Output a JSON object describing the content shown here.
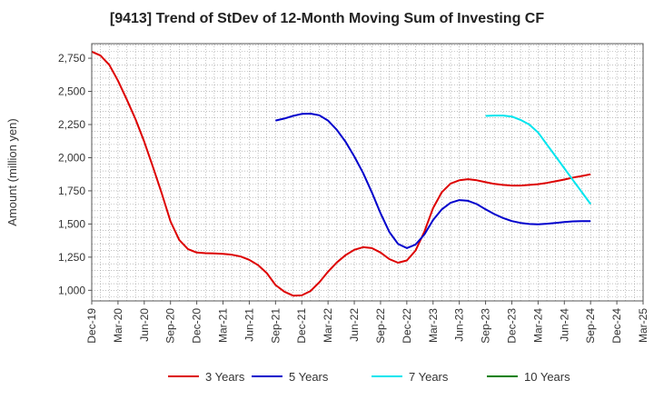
{
  "chart_data": {
    "type": "line",
    "title": "[9413]  Trend of StDev of 12-Month Moving Sum of Investing CF",
    "xlabel": "",
    "ylabel": "Amount (million yen)",
    "ylim": [
      920,
      2860
    ],
    "yticks": [
      1000,
      1250,
      1500,
      1750,
      2000,
      2250,
      2500,
      2750
    ],
    "ytick_labels": [
      "1,000",
      "1,250",
      "1,500",
      "1,750",
      "2,000",
      "2,250",
      "2,500",
      "2,750"
    ],
    "xtick_labels": [
      "Dec-19",
      "Mar-20",
      "Jun-20",
      "Sep-20",
      "Dec-20",
      "Mar-21",
      "Jun-21",
      "Sep-21",
      "Dec-21",
      "Mar-22",
      "Jun-22",
      "Sep-22",
      "Dec-22",
      "Mar-23",
      "Jun-23",
      "Sep-23",
      "Dec-23",
      "Mar-24",
      "Jun-24",
      "Sep-24",
      "Dec-24",
      "Mar-25"
    ],
    "grid": true,
    "legend_position": "bottom",
    "series": [
      {
        "name": "3 Years",
        "color": "#dd0000",
        "points": [
          [
            "2019-12",
            2800
          ],
          [
            "2020-01",
            2770
          ],
          [
            "2020-02",
            2700
          ],
          [
            "2020-03",
            2580
          ],
          [
            "2020-04",
            2440
          ],
          [
            "2020-05",
            2290
          ],
          [
            "2020-06",
            2120
          ],
          [
            "2020-07",
            1930
          ],
          [
            "2020-08",
            1730
          ],
          [
            "2020-09",
            1520
          ],
          [
            "2020-10",
            1380
          ],
          [
            "2020-11",
            1310
          ],
          [
            "2020-12",
            1285
          ],
          [
            "2021-01",
            1280
          ],
          [
            "2021-02",
            1278
          ],
          [
            "2021-03",
            1275
          ],
          [
            "2021-04",
            1268
          ],
          [
            "2021-05",
            1255
          ],
          [
            "2021-06",
            1230
          ],
          [
            "2021-07",
            1190
          ],
          [
            "2021-08",
            1130
          ],
          [
            "2021-09",
            1040
          ],
          [
            "2021-10",
            990
          ],
          [
            "2021-11",
            960
          ],
          [
            "2021-12",
            962
          ],
          [
            "2022-01",
            995
          ],
          [
            "2022-02",
            1060
          ],
          [
            "2022-03",
            1140
          ],
          [
            "2022-04",
            1210
          ],
          [
            "2022-05",
            1265
          ],
          [
            "2022-06",
            1305
          ],
          [
            "2022-07",
            1325
          ],
          [
            "2022-08",
            1318
          ],
          [
            "2022-09",
            1285
          ],
          [
            "2022-10",
            1235
          ],
          [
            "2022-11",
            1208
          ],
          [
            "2022-12",
            1225
          ],
          [
            "2023-01",
            1300
          ],
          [
            "2023-02",
            1440
          ],
          [
            "2023-03",
            1620
          ],
          [
            "2023-04",
            1740
          ],
          [
            "2023-05",
            1805
          ],
          [
            "2023-06",
            1830
          ],
          [
            "2023-07",
            1838
          ],
          [
            "2023-08",
            1830
          ],
          [
            "2023-09",
            1815
          ],
          [
            "2023-10",
            1802
          ],
          [
            "2023-11",
            1795
          ],
          [
            "2023-12",
            1790
          ],
          [
            "2024-01",
            1790
          ],
          [
            "2024-02",
            1795
          ],
          [
            "2024-03",
            1800
          ],
          [
            "2024-04",
            1810
          ],
          [
            "2024-05",
            1822
          ],
          [
            "2024-06",
            1835
          ],
          [
            "2024-07",
            1850
          ],
          [
            "2024-08",
            1862
          ],
          [
            "2024-09",
            1875
          ]
        ]
      },
      {
        "name": "5 Years",
        "color": "#0000cc",
        "points": [
          [
            "2021-09",
            2280
          ],
          [
            "2021-10",
            2295
          ],
          [
            "2021-11",
            2315
          ],
          [
            "2021-12",
            2330
          ],
          [
            "2022-01",
            2332
          ],
          [
            "2022-02",
            2320
          ],
          [
            "2022-03",
            2280
          ],
          [
            "2022-04",
            2210
          ],
          [
            "2022-05",
            2120
          ],
          [
            "2022-06",
            2010
          ],
          [
            "2022-07",
            1885
          ],
          [
            "2022-08",
            1740
          ],
          [
            "2022-09",
            1580
          ],
          [
            "2022-10",
            1440
          ],
          [
            "2022-11",
            1350
          ],
          [
            "2022-12",
            1318
          ],
          [
            "2023-01",
            1345
          ],
          [
            "2023-02",
            1420
          ],
          [
            "2023-03",
            1530
          ],
          [
            "2023-04",
            1610
          ],
          [
            "2023-05",
            1660
          ],
          [
            "2023-06",
            1680
          ],
          [
            "2023-07",
            1675
          ],
          [
            "2023-08",
            1650
          ],
          [
            "2023-09",
            1610
          ],
          [
            "2023-10",
            1575
          ],
          [
            "2023-11",
            1545
          ],
          [
            "2023-12",
            1522
          ],
          [
            "2024-01",
            1508
          ],
          [
            "2024-02",
            1500
          ],
          [
            "2024-03",
            1498
          ],
          [
            "2024-04",
            1502
          ],
          [
            "2024-05",
            1508
          ],
          [
            "2024-06",
            1515
          ],
          [
            "2024-07",
            1520
          ],
          [
            "2024-08",
            1522
          ],
          [
            "2024-09",
            1522
          ]
        ]
      },
      {
        "name": "7 Years",
        "color": "#00e5ee",
        "points": [
          [
            "2023-09",
            2315
          ],
          [
            "2023-10",
            2318
          ],
          [
            "2023-11",
            2318
          ],
          [
            "2023-12",
            2310
          ],
          [
            "2024-01",
            2285
          ],
          [
            "2024-02",
            2250
          ],
          [
            "2024-03",
            2190
          ],
          [
            "2024-04",
            2100
          ],
          [
            "2024-05",
            2010
          ],
          [
            "2024-06",
            1920
          ],
          [
            "2024-07",
            1830
          ],
          [
            "2024-08",
            1740
          ],
          [
            "2024-09",
            1650
          ]
        ]
      },
      {
        "name": "10 Years",
        "color": "#008000",
        "points": []
      }
    ]
  }
}
